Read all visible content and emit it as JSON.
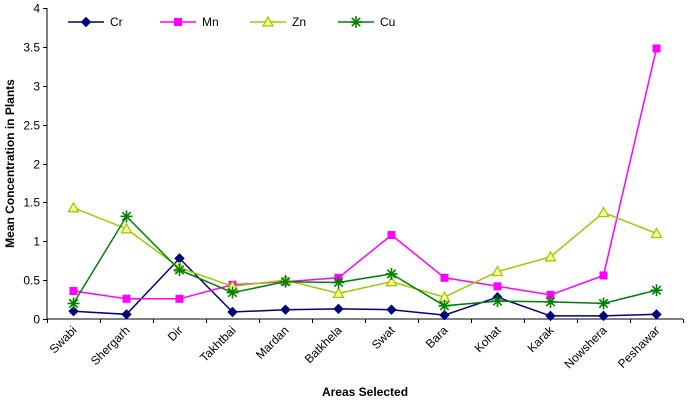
{
  "chart_data": {
    "type": "line",
    "title": "",
    "xlabel": "Areas Selected",
    "ylabel": "Mean Concentration in Plants",
    "ylim": [
      0,
      4
    ],
    "yticks": [
      "0",
      "0.5",
      "1",
      "1.5",
      "2",
      "2.5",
      "3",
      "3.5",
      "4"
    ],
    "grid": false,
    "legend_position": "top",
    "categories": [
      "Swabi",
      "Shergarh",
      "Dir",
      "Takhtbai",
      "Mardan",
      "Batkhela",
      "Swat",
      "Bara",
      "Kohat",
      "Karak",
      "Nowshera",
      "Peshawar"
    ],
    "series": [
      {
        "name": "Cr",
        "color": "#000080",
        "marker": "diamond",
        "values": [
          0.1,
          0.06,
          0.78,
          0.09,
          0.12,
          0.13,
          0.12,
          0.05,
          0.28,
          0.04,
          0.04,
          0.06
        ]
      },
      {
        "name": "Mn",
        "color": "#ff00ff",
        "marker": "square",
        "values": [
          0.36,
          0.26,
          0.26,
          0.44,
          0.48,
          0.53,
          1.08,
          0.53,
          0.42,
          0.31,
          0.56,
          3.48
        ]
      },
      {
        "name": "Zn",
        "color": "#99cc00",
        "marker": "triangle",
        "values": [
          1.43,
          1.16,
          0.66,
          0.42,
          0.5,
          0.33,
          0.48,
          0.28,
          0.61,
          0.8,
          1.37,
          1.1
        ]
      },
      {
        "name": "Cu",
        "color": "#008000",
        "marker": "star",
        "values": [
          0.2,
          1.32,
          0.63,
          0.34,
          0.48,
          0.47,
          0.58,
          0.17,
          0.23,
          0.22,
          0.2,
          0.37
        ]
      }
    ]
  }
}
